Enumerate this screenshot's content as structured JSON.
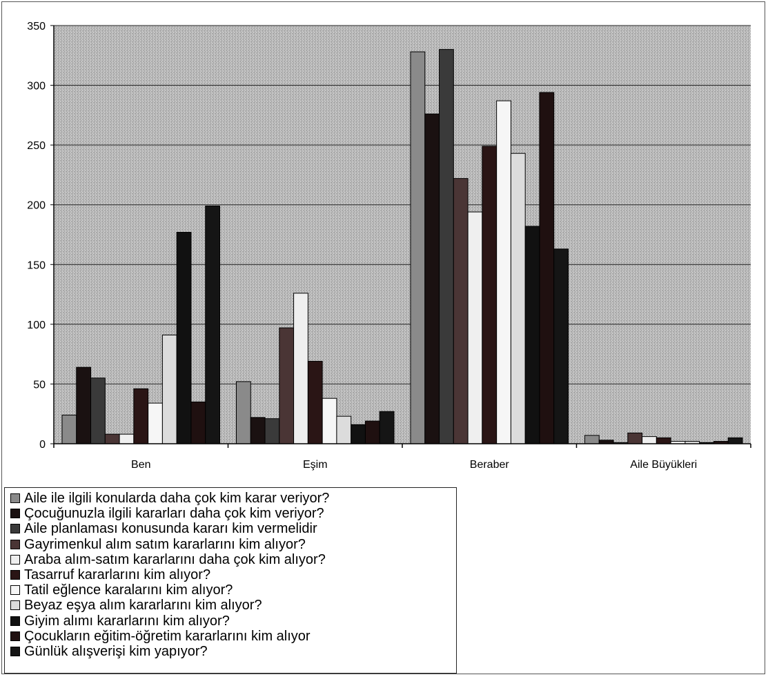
{
  "chart_data": {
    "type": "bar",
    "title": "",
    "xlabel": "",
    "ylabel": "",
    "ylim": [
      0,
      350
    ],
    "yticks": [
      0,
      50,
      100,
      150,
      200,
      250,
      300,
      350
    ],
    "grid": true,
    "legend_position": "bottom-left",
    "categories": [
      "Ben",
      "Eşim",
      "Beraber",
      "Aile Büyükleri"
    ],
    "series": [
      {
        "name": "Aile ile ilgili konularda daha çok kim karar veriyor?",
        "color": "#8a8a8a",
        "values": [
          24,
          52,
          328,
          7
        ]
      },
      {
        "name": "Çocuğunuzla ilgili kararları daha çok kim veriyor?",
        "color": "#1a1111",
        "values": [
          64,
          22,
          276,
          3
        ]
      },
      {
        "name": "Aile planlaması konusunda kararı kim vermelidir",
        "color": "#3a3a3a",
        "values": [
          55,
          21,
          330,
          1
        ]
      },
      {
        "name": "Gayrimenkul alım satım kararlarını kim alıyor?",
        "color": "#4a3535",
        "values": [
          8,
          97,
          222,
          9
        ]
      },
      {
        "name": "Araba alım-satım kararlarını daha çok kim alıyor?",
        "color": "#efefef",
        "values": [
          8,
          126,
          194,
          6
        ]
      },
      {
        "name": "Tasarruf kararlarını kim alıyor?",
        "color": "#2a1515",
        "values": [
          46,
          69,
          249,
          5
        ]
      },
      {
        "name": "Tatil eğlence karalarını kim alıyor?",
        "color": "#f6f6f6",
        "values": [
          34,
          38,
          287,
          2
        ]
      },
      {
        "name": "Beyaz eşya alım kararlarını kim alıyor?",
        "color": "#dcdcdc",
        "values": [
          91,
          23,
          243,
          2
        ]
      },
      {
        "name": "Giyim alımı kararlarını kim alıyor?",
        "color": "#111111",
        "values": [
          177,
          16,
          182,
          1
        ]
      },
      {
        "name": "Çocukların eğitim-öğretim kararlarını kim alıyor",
        "color": "#1f1010",
        "values": [
          35,
          19,
          294,
          2
        ]
      },
      {
        "name": "Günlük alışverişi kim yapıyor?",
        "color": "#151515",
        "values": [
          199,
          27,
          163,
          5
        ]
      }
    ]
  }
}
